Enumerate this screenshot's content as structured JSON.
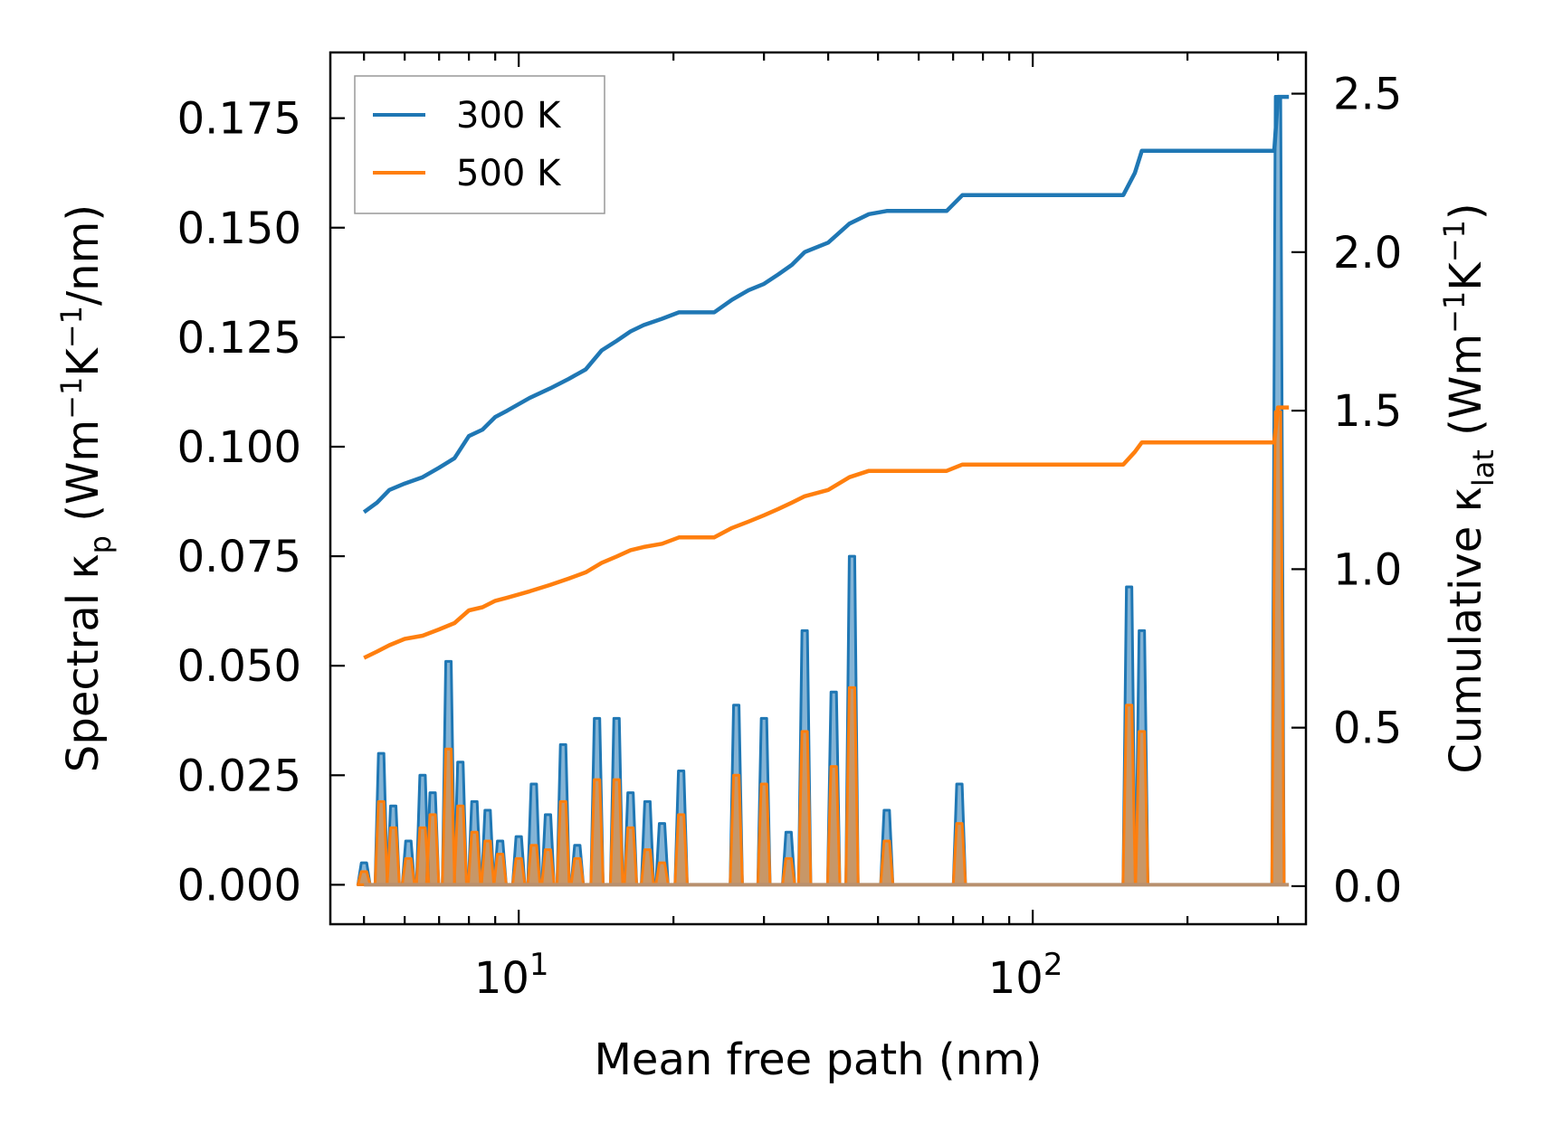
{
  "chart_data": {
    "type": "line",
    "xscale": "log",
    "xlim": [
      4.3,
      340
    ],
    "xlabel": "Mean free path (nm)",
    "xticks": [
      {
        "value": 10,
        "base": "10",
        "exp": "1"
      },
      {
        "value": 100,
        "base": "10",
        "exp": "2"
      }
    ],
    "left_axis": {
      "label_main": "Spectral κ",
      "label_sub": "p",
      "label_unit_open": " (Wm",
      "label_sup1": "−1",
      "label_unit_mid": "K",
      "label_sup2": "−1",
      "label_unit_close": "/nm)",
      "ylim": [
        -0.009,
        0.19
      ],
      "ticks": [
        {
          "value": 0.0,
          "label": "0.000"
        },
        {
          "value": 0.025,
          "label": "0.025"
        },
        {
          "value": 0.05,
          "label": "0.050"
        },
        {
          "value": 0.075,
          "label": "0.075"
        },
        {
          "value": 0.1,
          "label": "0.100"
        },
        {
          "value": 0.125,
          "label": "0.125"
        },
        {
          "value": 0.15,
          "label": "0.150"
        },
        {
          "value": 0.175,
          "label": "0.175"
        }
      ]
    },
    "right_axis": {
      "label_main": "Cumulative κ",
      "label_sub": "lat",
      "label_unit_open": " (Wm",
      "label_sup1": "−1",
      "label_unit_mid": "K",
      "label_sup2": "−1",
      "label_unit_close": ")",
      "ylim": [
        -0.12,
        2.63
      ],
      "ticks": [
        {
          "value": 0.0,
          "label": "0.0"
        },
        {
          "value": 0.5,
          "label": "0.5"
        },
        {
          "value": 1.0,
          "label": "1.0"
        },
        {
          "value": 1.5,
          "label": "1.5"
        },
        {
          "value": 2.0,
          "label": "2.0"
        },
        {
          "value": 2.5,
          "label": "2.5"
        }
      ]
    },
    "legend": {
      "position": "top-left",
      "entries": [
        {
          "label": "300 K",
          "color": "#1f77b4"
        },
        {
          "label": "500 K",
          "color": "#ff7f0e"
        }
      ]
    },
    "series": [
      {
        "name": "300 K",
        "color": "#1f77b4",
        "cumulative_x": [
          5.0,
          5.3,
          5.6,
          6.0,
          6.5,
          7.0,
          7.5,
          8.0,
          8.5,
          9.0,
          9.5,
          10.5,
          11.5,
          12.5,
          13.5,
          14.5,
          15.5,
          16.5,
          17.5,
          19.0,
          20.5,
          22.0,
          24.0,
          26.0,
          28.0,
          30.0,
          32.0,
          34.0,
          36.0,
          40.0,
          44.0,
          48.0,
          52.0,
          60.0,
          68.0,
          73.0,
          90.0,
          120.0,
          150.0,
          158.0,
          163.0,
          200.0,
          260.0,
          295.0,
          300.0,
          315.0
        ],
        "cumulative_y": [
          1.18,
          1.21,
          1.25,
          1.27,
          1.29,
          1.32,
          1.35,
          1.42,
          1.44,
          1.48,
          1.5,
          1.54,
          1.57,
          1.6,
          1.63,
          1.69,
          1.72,
          1.75,
          1.77,
          1.79,
          1.81,
          1.81,
          1.81,
          1.85,
          1.88,
          1.9,
          1.93,
          1.96,
          2.0,
          2.03,
          2.09,
          2.12,
          2.13,
          2.13,
          2.13,
          2.18,
          2.18,
          2.18,
          2.18,
          2.25,
          2.32,
          2.32,
          2.32,
          2.32,
          2.49,
          2.49
        ]
      },
      {
        "name": "500 K",
        "color": "#ff7f0e",
        "cumulative_x": [
          5.0,
          5.3,
          5.6,
          6.0,
          6.5,
          7.0,
          7.5,
          8.0,
          8.5,
          9.0,
          9.5,
          10.5,
          11.5,
          12.5,
          13.5,
          14.5,
          15.5,
          16.5,
          17.5,
          19.0,
          20.5,
          22.0,
          24.0,
          26.0,
          28.0,
          30.0,
          32.0,
          34.0,
          36.0,
          40.0,
          44.0,
          48.0,
          52.0,
          60.0,
          68.0,
          73.0,
          90.0,
          120.0,
          150.0,
          158.0,
          163.0,
          200.0,
          260.0,
          295.0,
          300.0,
          315.0
        ],
        "cumulative_y": [
          0.72,
          0.74,
          0.76,
          0.78,
          0.79,
          0.81,
          0.83,
          0.87,
          0.88,
          0.9,
          0.91,
          0.93,
          0.95,
          0.97,
          0.99,
          1.02,
          1.04,
          1.06,
          1.07,
          1.08,
          1.1,
          1.1,
          1.1,
          1.13,
          1.15,
          1.17,
          1.19,
          1.21,
          1.23,
          1.25,
          1.29,
          1.31,
          1.31,
          1.31,
          1.31,
          1.33,
          1.33,
          1.33,
          1.33,
          1.37,
          1.4,
          1.4,
          1.4,
          1.4,
          1.51,
          1.51
        ],
        "spectral_peaks": [
          {
            "x": 5.0,
            "y": 0.003
          },
          {
            "x": 5.4,
            "y": 0.019
          },
          {
            "x": 5.7,
            "y": 0.013
          },
          {
            "x": 6.1,
            "y": 0.006
          },
          {
            "x": 6.5,
            "y": 0.013
          },
          {
            "x": 6.8,
            "y": 0.016
          },
          {
            "x": 7.3,
            "y": 0.031
          },
          {
            "x": 7.7,
            "y": 0.018
          },
          {
            "x": 8.2,
            "y": 0.012
          },
          {
            "x": 8.7,
            "y": 0.01
          },
          {
            "x": 9.2,
            "y": 0.007
          },
          {
            "x": 10.0,
            "y": 0.006
          },
          {
            "x": 10.7,
            "y": 0.009
          },
          {
            "x": 11.4,
            "y": 0.008
          },
          {
            "x": 12.2,
            "y": 0.019
          },
          {
            "x": 13.0,
            "y": 0.006
          },
          {
            "x": 14.2,
            "y": 0.024
          },
          {
            "x": 15.5,
            "y": 0.024
          },
          {
            "x": 16.5,
            "y": 0.013
          },
          {
            "x": 17.8,
            "y": 0.008
          },
          {
            "x": 19.0,
            "y": 0.005
          },
          {
            "x": 20.7,
            "y": 0.016
          },
          {
            "x": 26.5,
            "y": 0.025
          },
          {
            "x": 30.0,
            "y": 0.023
          },
          {
            "x": 33.5,
            "y": 0.006
          },
          {
            "x": 36.0,
            "y": 0.035
          },
          {
            "x": 41.0,
            "y": 0.027
          },
          {
            "x": 44.5,
            "y": 0.045
          },
          {
            "x": 52.0,
            "y": 0.01
          },
          {
            "x": 72.0,
            "y": 0.014
          },
          {
            "x": 154.0,
            "y": 0.041
          },
          {
            "x": 163.0,
            "y": 0.035
          },
          {
            "x": 300.0,
            "y": 0.108
          }
        ]
      }
    ],
    "spectral_300K_peaks": [
      {
        "x": 5.0,
        "y": 0.005
      },
      {
        "x": 5.4,
        "y": 0.03
      },
      {
        "x": 5.7,
        "y": 0.018
      },
      {
        "x": 6.1,
        "y": 0.01
      },
      {
        "x": 6.5,
        "y": 0.025
      },
      {
        "x": 6.8,
        "y": 0.021
      },
      {
        "x": 7.3,
        "y": 0.051
      },
      {
        "x": 7.7,
        "y": 0.028
      },
      {
        "x": 8.2,
        "y": 0.019
      },
      {
        "x": 8.7,
        "y": 0.017
      },
      {
        "x": 9.2,
        "y": 0.01
      },
      {
        "x": 10.0,
        "y": 0.011
      },
      {
        "x": 10.7,
        "y": 0.023
      },
      {
        "x": 11.4,
        "y": 0.016
      },
      {
        "x": 12.2,
        "y": 0.032
      },
      {
        "x": 13.0,
        "y": 0.009
      },
      {
        "x": 14.2,
        "y": 0.038
      },
      {
        "x": 15.5,
        "y": 0.038
      },
      {
        "x": 16.5,
        "y": 0.021
      },
      {
        "x": 17.8,
        "y": 0.019
      },
      {
        "x": 19.0,
        "y": 0.014
      },
      {
        "x": 20.7,
        "y": 0.026
      },
      {
        "x": 26.5,
        "y": 0.041
      },
      {
        "x": 30.0,
        "y": 0.038
      },
      {
        "x": 33.5,
        "y": 0.012
      },
      {
        "x": 36.0,
        "y": 0.058
      },
      {
        "x": 41.0,
        "y": 0.044
      },
      {
        "x": 44.5,
        "y": 0.075
      },
      {
        "x": 52.0,
        "y": 0.017
      },
      {
        "x": 72.0,
        "y": 0.023
      },
      {
        "x": 154.0,
        "y": 0.068
      },
      {
        "x": 163.0,
        "y": 0.058
      },
      {
        "x": 300.0,
        "y": 0.18
      }
    ]
  }
}
